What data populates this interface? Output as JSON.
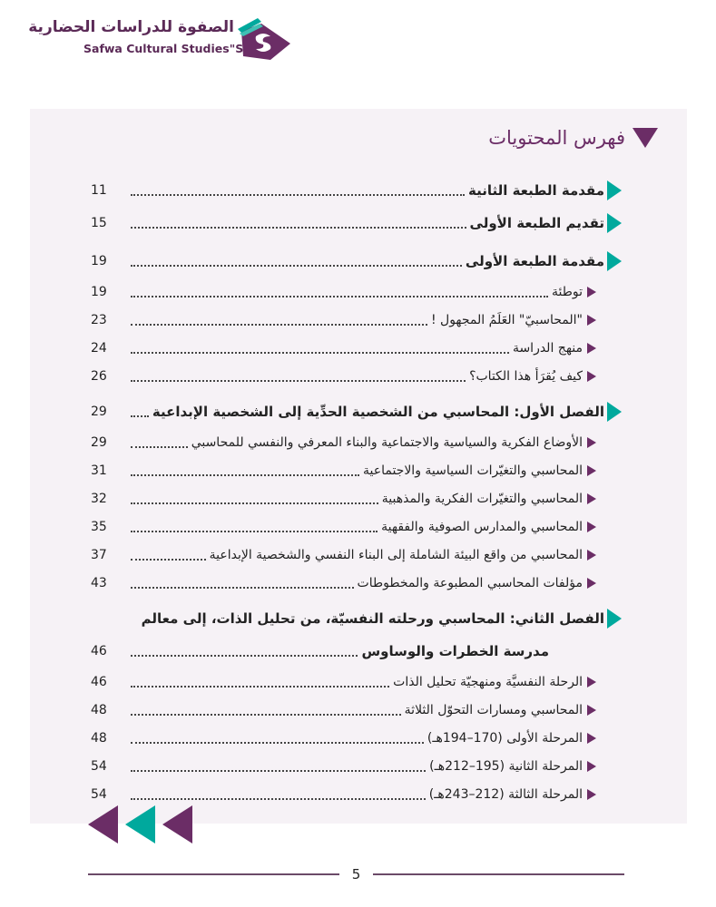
{
  "header": {
    "logo_arabic": "الصفوة للدراسات الحضارية",
    "logo_english": "Safwa Cultural Studies\"SCS\""
  },
  "toc": {
    "title": "فهرس المحتويات",
    "entries": [
      {
        "text": "مقدمة الطبعة الثانية",
        "page": "11",
        "level": "main"
      },
      {
        "text": "تقديم الطبعة الأولى",
        "page": "15",
        "level": "main"
      },
      {
        "text": "مقدمة الطبعة الأولى",
        "page": "19",
        "level": "main"
      },
      {
        "text": "توطئة",
        "page": "19",
        "level": "sub"
      },
      {
        "text": "\"المحاسبيّ\" العَلَمُ المجهول !",
        "page": "23",
        "level": "sub"
      },
      {
        "text": "منهج الدراسة",
        "page": "24",
        "level": "sub"
      },
      {
        "text": "كيف يُقرَأ هذا الكتاب؟",
        "page": "26",
        "level": "sub"
      },
      {
        "text": "الفصل الأول: المحاسبي من الشخصية الحدِّية إلى الشخصية الإبداعية",
        "page": "29",
        "level": "main"
      },
      {
        "text": "الأوضاع الفكرية والسياسية والاجتماعية والبناء المعرفي والنفسي للمحاسبي",
        "page": "29",
        "level": "sub"
      },
      {
        "text": "المحاسبي والتغيّرات السياسية والاجتماعية",
        "page": "31",
        "level": "sub"
      },
      {
        "text": "المحاسبي والتغيّرات الفكرية والمذهبية",
        "page": "32",
        "level": "sub"
      },
      {
        "text": "المحاسبي والمدارس الصوفية والفقهية",
        "page": "35",
        "level": "sub"
      },
      {
        "text": "المحاسبي من واقع البيئة الشاملة إلى البناء النفسي والشخصية الإبداعية",
        "page": "37",
        "level": "sub"
      },
      {
        "text": "مؤلفات المحاسبي المطبوعة والمخطوطات",
        "page": "43",
        "level": "sub"
      },
      {
        "text": "الفصل الثاني: المحاسبي ورحلته النفسيّة، من تحليل الذات، إلى معالم",
        "continuation": "مدرسة الخطرات والوساوس",
        "page": "46",
        "level": "main"
      },
      {
        "text": "الرحلة النفسيَّة ومنهجيّة تحليل الذات",
        "page": "46",
        "level": "sub"
      },
      {
        "text": "المحاسبي ومسارات التحوّل الثلاثة",
        "page": "48",
        "level": "sub"
      },
      {
        "text": "المرحلة الأولى (170–194هـ)",
        "page": "48",
        "level": "sub"
      },
      {
        "text": "المرحلة الثانية (195–212هـ)",
        "page": "54",
        "level": "sub"
      },
      {
        "text": "المرحلة الثالثة (212–243هـ)",
        "page": "54",
        "level": "sub"
      }
    ]
  },
  "footer": {
    "page_number": "5"
  },
  "colors": {
    "purple": "#6b2d66",
    "teal": "#00a99d",
    "panel": "#f6f2f6"
  }
}
